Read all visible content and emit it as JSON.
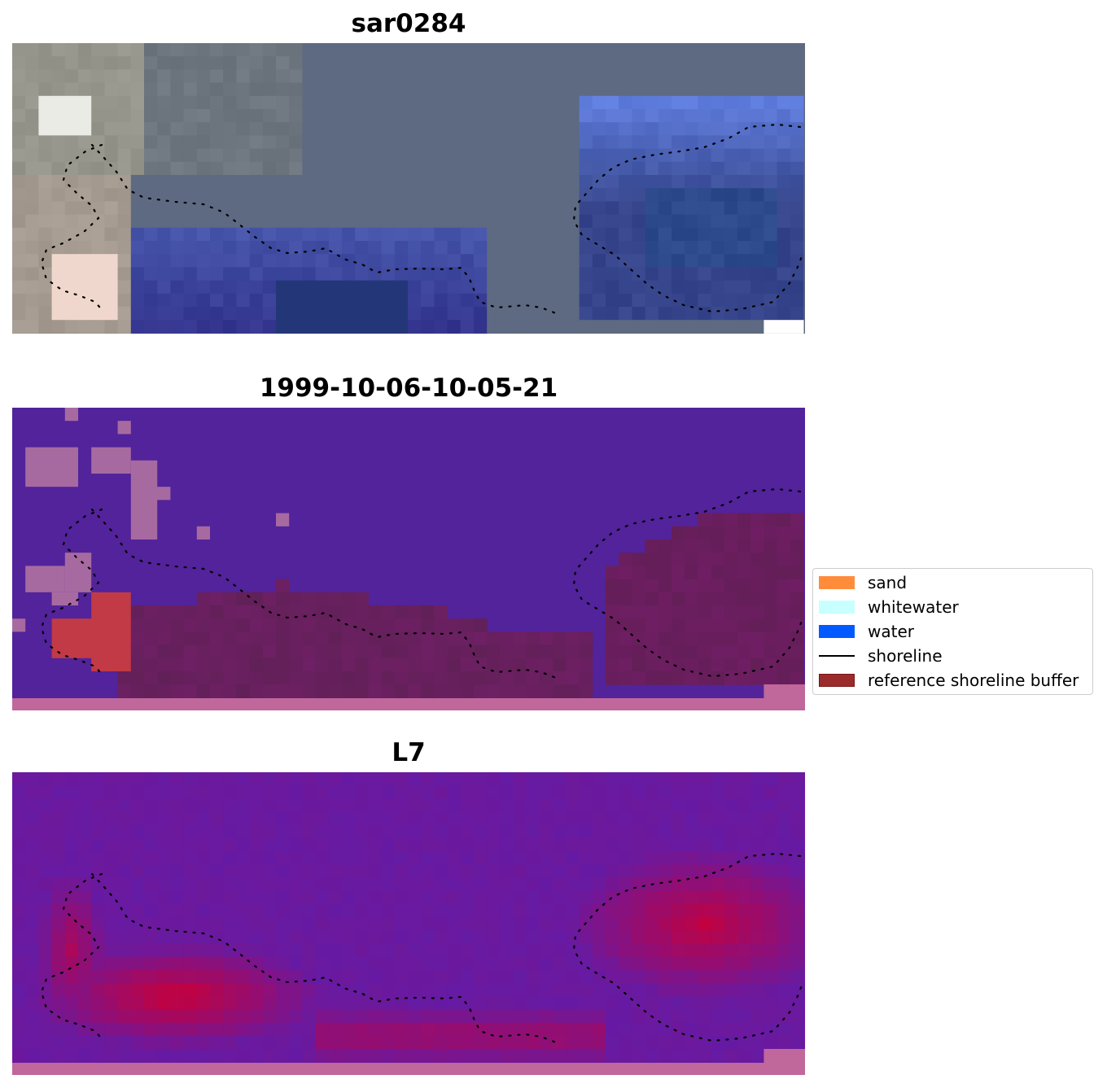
{
  "panels": [
    {
      "title": "sar0284"
    },
    {
      "title": "1999-10-06-10-05-21"
    },
    {
      "title": "L7"
    }
  ],
  "legend": {
    "items": [
      {
        "label": "sand",
        "color": "#ff8c3a",
        "kind": "patch"
      },
      {
        "label": "whitewater",
        "color": "#c8ffff",
        "kind": "patch"
      },
      {
        "label": "water",
        "color": "#005aff",
        "kind": "patch"
      },
      {
        "label": "shoreline",
        "color": "#000000",
        "kind": "line"
      },
      {
        "label": "reference shoreline buffer",
        "color": "#9b2b2b",
        "edge": "#7a1515",
        "kind": "patch"
      }
    ]
  },
  "colors": {
    "rgb_base": "#5e6a82",
    "classified_background": "#52239a",
    "classified_blob": "#a76aa0",
    "classified_buffer": "#6c2266",
    "classified_sand": "#c23a45",
    "index_background": "#6a1aa0",
    "index_high": "#c8003a",
    "bottom_strip": "#c0679c"
  }
}
